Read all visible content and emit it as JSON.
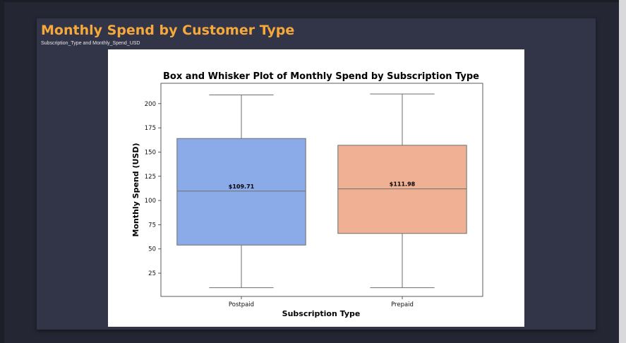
{
  "card": {
    "title": "Monthly Spend by Customer Type",
    "subtitle": "Subscription_Type and Monthly_Spend_USD"
  },
  "chart_data": {
    "type": "box",
    "title": "Box and Whisker Plot of Monthly Spend by Subscription Type",
    "xlabel": "Subscription Type",
    "ylabel": "Monthly Spend (USD)",
    "ylim": [
      1,
      221
    ],
    "yticks": [
      25,
      50,
      75,
      100,
      125,
      150,
      175,
      200
    ],
    "categories": [
      "Postpaid",
      "Prepaid"
    ],
    "boxes": [
      {
        "category": "Postpaid",
        "min": 10,
        "q1": 54,
        "median": 109.71,
        "q3": 164,
        "max": 209,
        "median_label": "$109.71",
        "color": "#8aabe8"
      },
      {
        "category": "Prepaid",
        "min": 10,
        "q1": 66,
        "median": 111.98,
        "q3": 157,
        "max": 210,
        "median_label": "$111.98",
        "color": "#f0b093"
      }
    ],
    "grid": false
  }
}
